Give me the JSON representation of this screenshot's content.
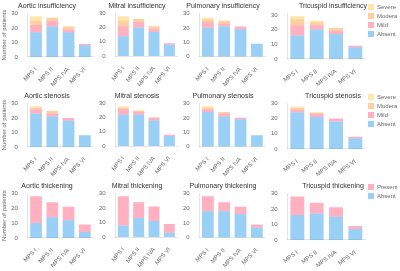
{
  "chart_data": [
    {
      "type": "bar",
      "title": "Aortic insufficiency",
      "categories": [
        "MPS I",
        "MPS II",
        "MPS IVA",
        "MPS VI"
      ],
      "series": [
        {
          "name": "Absent",
          "values": [
            17,
            21,
            17,
            8
          ]
        },
        {
          "name": "Mild",
          "values": [
            5,
            4,
            2,
            1
          ]
        },
        {
          "name": "Moderate",
          "values": [
            3,
            2,
            2,
            0
          ]
        },
        {
          "name": "Severe",
          "values": [
            3,
            0,
            0,
            0
          ]
        }
      ],
      "ylim": [
        0,
        30
      ],
      "yticks": [
        0,
        10,
        20,
        30
      ],
      "stacked": true,
      "grid": false,
      "ylabel": "Number of patients"
    },
    {
      "type": "bar",
      "title": "Mitral insufficiency",
      "categories": [
        "MPS I",
        "MPS II",
        "MPS IVA",
        "MPS VI"
      ],
      "series": [
        {
          "name": "Absent",
          "values": [
            14,
            20,
            17,
            8
          ]
        },
        {
          "name": "Mild",
          "values": [
            7,
            4,
            2,
            1
          ]
        },
        {
          "name": "Moderate",
          "values": [
            4,
            2,
            2,
            0
          ]
        },
        {
          "name": "Severe",
          "values": [
            3,
            0,
            0,
            0
          ]
        }
      ],
      "ylim": [
        0,
        30
      ],
      "yticks": [
        0,
        10,
        20,
        30
      ],
      "stacked": true,
      "grid": false
    },
    {
      "type": "bar",
      "title": "Pulmonary insufficiency",
      "categories": [
        "MPS I",
        "MPS II",
        "MPS IVA",
        "MPS VI"
      ],
      "series": [
        {
          "name": "Absent",
          "values": [
            20,
            21,
            19,
            9
          ]
        },
        {
          "name": "Mild",
          "values": [
            4,
            2,
            2,
            0
          ]
        },
        {
          "name": "Moderate",
          "values": [
            2,
            2,
            0,
            0
          ]
        },
        {
          "name": "Severe",
          "values": [
            1,
            0,
            0,
            0
          ]
        }
      ],
      "ylim": [
        0,
        30
      ],
      "yticks": [
        0,
        10,
        20,
        30
      ],
      "stacked": true,
      "grid": false
    },
    {
      "type": "bar",
      "title": "Tricuspid insufficiency",
      "categories": [
        "MPS I",
        "MPS II",
        "MPS IVA",
        "MPS VI"
      ],
      "series": [
        {
          "name": "Absent",
          "values": [
            16,
            20,
            17,
            8
          ]
        },
        {
          "name": "Mild",
          "values": [
            7,
            3,
            2,
            1
          ]
        },
        {
          "name": "Moderate",
          "values": [
            4,
            2,
            2,
            0
          ]
        },
        {
          "name": "Severe",
          "values": [
            2,
            1,
            0,
            0
          ]
        }
      ],
      "ylim": [
        0,
        31
      ],
      "yticks": [
        0,
        10,
        20,
        30
      ],
      "stacked": true,
      "grid": false,
      "legend": "upper right"
    },
    {
      "type": "bar",
      "title": "Aortic stenosis",
      "categories": [
        "MPS I",
        "MPS II",
        "MPS IVA",
        "MPS VI"
      ],
      "series": [
        {
          "name": "Absent",
          "values": [
            23,
            21,
            18,
            8
          ]
        },
        {
          "name": "Mild",
          "values": [
            3,
            2,
            2,
            0
          ]
        },
        {
          "name": "Moderate",
          "values": [
            1,
            2,
            0,
            0
          ]
        },
        {
          "name": "Severe",
          "values": [
            1,
            0,
            0,
            0
          ]
        }
      ],
      "ylim": [
        0,
        30
      ],
      "yticks": [
        0,
        10,
        20,
        30
      ],
      "stacked": true,
      "grid": false,
      "ylabel": "Number of patients"
    },
    {
      "type": "bar",
      "title": "Mitral stenosis",
      "categories": [
        "MPS I",
        "MPS II",
        "MPS IVA",
        "MPS VI"
      ],
      "series": [
        {
          "name": "Absent",
          "values": [
            22,
            22,
            18,
            7
          ]
        },
        {
          "name": "Mild",
          "values": [
            4,
            2,
            2,
            1
          ]
        },
        {
          "name": "Moderate",
          "values": [
            1,
            1,
            0,
            0
          ]
        },
        {
          "name": "Severe",
          "values": [
            1,
            0,
            0,
            0
          ]
        }
      ],
      "ylim": [
        0,
        30
      ],
      "yticks": [
        0,
        10,
        20,
        30
      ],
      "stacked": true,
      "grid": false
    },
    {
      "type": "bar",
      "title": "Pulmonary stenosis",
      "categories": [
        "MPS I",
        "MPS II",
        "MPS IVA",
        "MPS VI"
      ],
      "series": [
        {
          "name": "Absent",
          "values": [
            24,
            21,
            19,
            8
          ]
        },
        {
          "name": "Mild",
          "values": [
            2,
            2,
            1,
            0
          ]
        },
        {
          "name": "Moderate",
          "values": [
            1,
            1,
            0,
            0
          ]
        },
        {
          "name": "Severe",
          "values": [
            1,
            0,
            0,
            0
          ]
        }
      ],
      "ylim": [
        0,
        30
      ],
      "yticks": [
        0,
        10,
        20,
        30
      ],
      "stacked": true,
      "grid": false
    },
    {
      "type": "bar",
      "title": "Tricuspid stenosis",
      "categories": [
        "MPS I",
        "MPS II",
        "MPS IVA",
        "MPS VI"
      ],
      "series": [
        {
          "name": "Absent",
          "values": [
            24,
            21,
            18,
            7
          ]
        },
        {
          "name": "Mild",
          "values": [
            2,
            2,
            2,
            1
          ]
        },
        {
          "name": "Moderate",
          "values": [
            1,
            1,
            0,
            0
          ]
        },
        {
          "name": "Severe",
          "values": [
            1,
            0,
            0,
            0
          ]
        }
      ],
      "ylim": [
        0,
        30
      ],
      "yticks": [
        0,
        10,
        20,
        30
      ],
      "stacked": true,
      "grid": false,
      "legend": "upper right"
    },
    {
      "type": "bar",
      "title": "Aortic thickening",
      "categories": [
        "MPS I",
        "MPS II",
        "MPS IVA",
        "MPS VI"
      ],
      "series": [
        {
          "name": "Absent",
          "values": [
            10,
            14,
            12,
            4
          ]
        },
        {
          "name": "Present",
          "values": [
            18,
            10,
            9,
            5
          ]
        }
      ],
      "ylim": [
        0,
        30
      ],
      "yticks": [
        0,
        10,
        20,
        30
      ],
      "stacked": true,
      "grid": false,
      "ylabel": "Number of patients"
    },
    {
      "type": "bar",
      "title": "Mitral thickening",
      "categories": [
        "MPS I",
        "MPS II",
        "MPS IVA",
        "MPS VI"
      ],
      "series": [
        {
          "name": "Absent",
          "values": [
            8,
            13,
            11,
            3
          ]
        },
        {
          "name": "Present",
          "values": [
            20,
            11,
            10,
            6
          ]
        }
      ],
      "ylim": [
        0,
        30
      ],
      "yticks": [
        0,
        10,
        20,
        30
      ],
      "stacked": true,
      "grid": false
    },
    {
      "type": "bar",
      "title": "Pulmonary thickening",
      "categories": [
        "MPS I",
        "MPS II",
        "MPS IVA",
        "MPS VI"
      ],
      "series": [
        {
          "name": "Absent",
          "values": [
            18,
            18,
            16,
            7
          ]
        },
        {
          "name": "Present",
          "values": [
            10,
            6,
            5,
            2
          ]
        }
      ],
      "ylim": [
        0,
        30
      ],
      "yticks": [
        0,
        10,
        20,
        30
      ],
      "stacked": true,
      "grid": false
    },
    {
      "type": "bar",
      "title": "Tricuspid thickening",
      "categories": [
        "MPS I",
        "MPS II",
        "MPS IVA",
        "MPS VI"
      ],
      "series": [
        {
          "name": "Absent",
          "values": [
            16,
            17,
            15,
            7
          ]
        },
        {
          "name": "Present",
          "values": [
            12,
            7,
            6,
            2
          ]
        }
      ],
      "ylim": [
        0,
        30
      ],
      "yticks": [
        0,
        10,
        20,
        30
      ],
      "stacked": true,
      "grid": false,
      "legend": "upper right"
    }
  ]
}
